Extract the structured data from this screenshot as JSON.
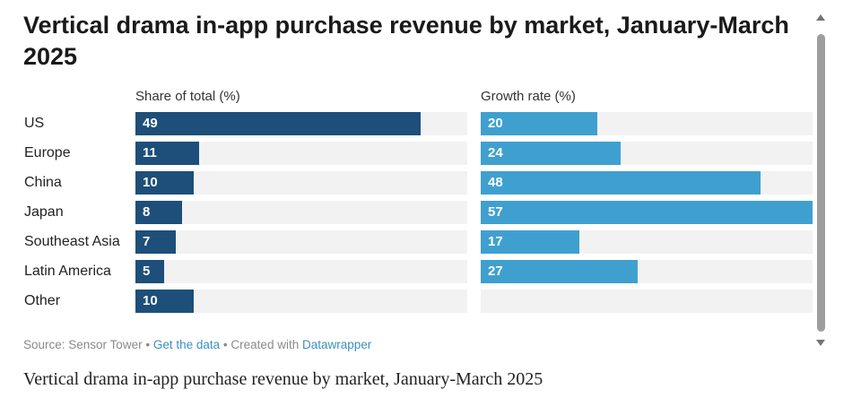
{
  "chart_data": {
    "type": "bar",
    "title": "Vertical drama in-app purchase revenue by market, January-March 2025",
    "categories": [
      "US",
      "Europe",
      "China",
      "Japan",
      "Southeast Asia",
      "Latin America",
      "Other"
    ],
    "series": [
      {
        "name": "Share of total (%)",
        "values": [
          49,
          11,
          10,
          8,
          7,
          5,
          10
        ],
        "xlim": [
          0,
          57
        ],
        "color": "#1d4f7a"
      },
      {
        "name": "Growth rate (%)",
        "values": [
          20,
          24,
          48,
          57,
          17,
          27,
          null
        ],
        "xlim": [
          0,
          57
        ],
        "color": "#3fa0d0"
      }
    ],
    "xlabel": "",
    "ylabel": "",
    "grid": false
  },
  "footer": {
    "source_text": "Source: Sensor Tower",
    "separator": "•",
    "data_link": "Get the data",
    "created_text": "Created with",
    "tool_link": "Datawrapper"
  },
  "caption": "Vertical drama in-app purchase revenue by market, January-March 2025"
}
